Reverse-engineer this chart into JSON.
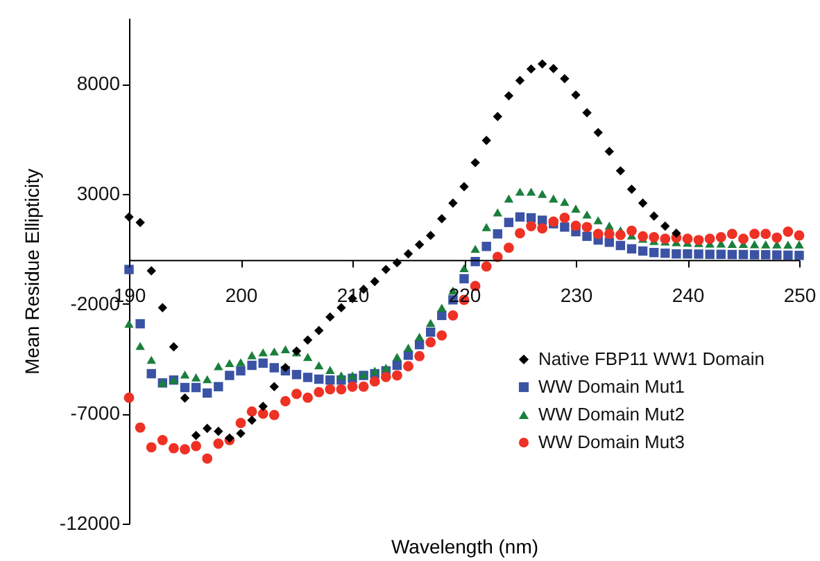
{
  "chart_data": {
    "type": "scatter",
    "xlabel": "Wavelength (nm)",
    "ylabel": "Mean Residue Ellipticity",
    "x": [
      190,
      191,
      192,
      193,
      194,
      195,
      196,
      197,
      198,
      199,
      200,
      201,
      202,
      203,
      204,
      205,
      206,
      207,
      208,
      209,
      210,
      211,
      212,
      213,
      214,
      215,
      216,
      217,
      218,
      219,
      220,
      221,
      222,
      223,
      224,
      225,
      226,
      227,
      228,
      229,
      230,
      231,
      232,
      233,
      234,
      235,
      236,
      237,
      238,
      239,
      240,
      241,
      242,
      243,
      244,
      245,
      246,
      247,
      248,
      249,
      250
    ],
    "series": [
      {
        "name": "Native FBP11 WW1 Domain",
        "color": "#000000",
        "marker": "diamond",
        "values": [
          1950,
          1700,
          -500,
          -2180,
          -3960,
          -6290,
          -7990,
          -7670,
          -7800,
          -8110,
          -7900,
          -7300,
          -6670,
          -5770,
          -4900,
          -4150,
          -3650,
          -3220,
          -2600,
          -2180,
          -1760,
          -1340,
          -990,
          -440,
          -130,
          270,
          690,
          1110,
          1870,
          2580,
          3330,
          4420,
          5430,
          6520,
          7460,
          8160,
          8680,
          8910,
          8700,
          8240,
          7500,
          6690,
          5790,
          4930,
          4050,
          3210,
          2580,
          1990,
          1530,
          1210,
          null,
          null,
          null,
          null,
          null,
          null,
          null,
          null,
          null,
          null,
          null
        ]
      },
      {
        "name": "WW Domain Mut1",
        "color": "#3a53a4",
        "marker": "square",
        "values": [
          -440,
          -2910,
          -5180,
          -5600,
          -5470,
          -5810,
          -5810,
          -6060,
          -5770,
          -5260,
          -5050,
          -4800,
          -4700,
          -4910,
          -5050,
          -5220,
          -5350,
          -5430,
          -5470,
          -5470,
          -5390,
          -5260,
          -5180,
          -5050,
          -4800,
          -4340,
          -3860,
          -3290,
          -2530,
          -1820,
          -860,
          -80,
          610,
          1180,
          1700,
          1950,
          1910,
          1800,
          1640,
          1490,
          1280,
          1070,
          900,
          800,
          650,
          500,
          400,
          330,
          300,
          270,
          270,
          260,
          250,
          250,
          240,
          240,
          230,
          230,
          220,
          210,
          200
        ]
      },
      {
        "name": "WW Domain Mut2",
        "color": "#1a7f3c",
        "marker": "triangle",
        "values": [
          -2910,
          -3920,
          -4550,
          -5600,
          -5470,
          -5220,
          -5350,
          -5430,
          -4840,
          -4700,
          -4660,
          -4340,
          -4210,
          -4170,
          -4070,
          -4210,
          -4420,
          -4800,
          -5010,
          -5260,
          -5260,
          -5220,
          -5050,
          -4910,
          -4420,
          -4000,
          -3500,
          -2870,
          -2180,
          -1400,
          -380,
          500,
          1490,
          2160,
          2790,
          3100,
          3100,
          3000,
          2790,
          2640,
          2330,
          2060,
          1800,
          1550,
          1340,
          1110,
          960,
          860,
          830,
          800,
          780,
          760,
          740,
          740,
          720,
          720,
          710,
          700,
          700,
          690,
          700
        ]
      },
      {
        "name": "WW Domain Mut3",
        "color": "#ee3124",
        "marker": "circle",
        "values": [
          -6270,
          -7630,
          -8530,
          -8200,
          -8570,
          -8620,
          -8470,
          -9040,
          -8360,
          -8200,
          -7420,
          -6900,
          -7000,
          -7060,
          -6430,
          -6100,
          -6270,
          -6020,
          -5890,
          -5890,
          -5770,
          -5770,
          -5530,
          -5330,
          -5260,
          -4840,
          -4380,
          -3750,
          -3440,
          -2530,
          -1820,
          -1190,
          -300,
          130,
          550,
          1210,
          1530,
          1430,
          1740,
          1910,
          1550,
          1490,
          1180,
          1180,
          1130,
          1320,
          1070,
          1030,
          960,
          1010,
          960,
          900,
          960,
          1030,
          1180,
          960,
          1180,
          1180,
          1010,
          1280,
          1110
        ]
      }
    ],
    "xlim": [
      190,
      250
    ],
    "xticks": [
      190,
      200,
      210,
      220,
      230,
      240,
      250
    ],
    "ylim": [
      -12000,
      11000
    ],
    "yticks": [
      -12000,
      -7000,
      -2000,
      3000,
      8000
    ],
    "grid": false,
    "legend": "bottom right"
  }
}
